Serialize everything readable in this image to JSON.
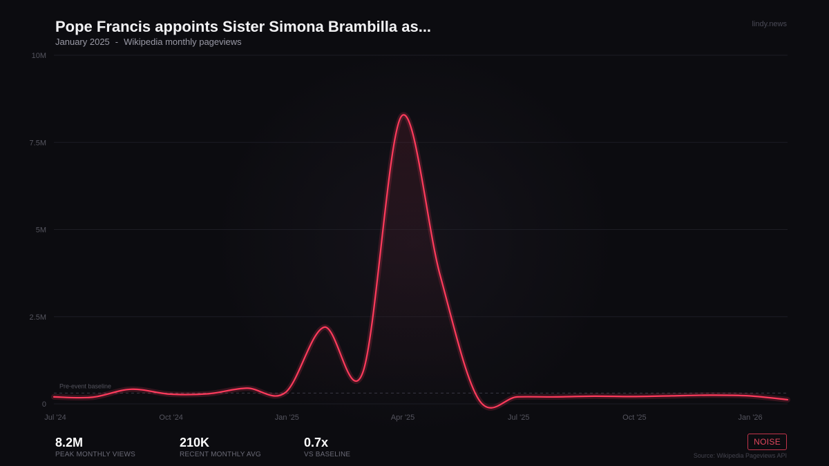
{
  "header": {
    "title": "Pope Francis appoints Sister Simona Brambilla as...",
    "date": "January 2025",
    "separator": "-",
    "metric": "Wikipedia monthly pageviews",
    "brand": "lindy.news"
  },
  "chart_data": {
    "type": "line",
    "ylim": [
      0,
      10000000
    ],
    "y_ticks": [
      0,
      2500000,
      5000000,
      7500000,
      10000000
    ],
    "y_tick_labels": [
      "0",
      "2.5M",
      "5M",
      "7.5M",
      "10M"
    ],
    "x_tick_labels": [
      "Jul '24",
      "Oct '24",
      "Jan '25",
      "Apr '25",
      "Jul '25",
      "Oct '25",
      "Jan '26"
    ],
    "x_tick_positions": [
      0,
      3,
      6,
      9,
      12,
      15,
      18
    ],
    "grid": true,
    "baseline": {
      "label": "Pre-event baseline",
      "value": 310000
    },
    "series": [
      {
        "x": [
          "2024-07",
          "2024-08",
          "2024-09",
          "2024-10",
          "2024-11",
          "2024-12",
          "2025-01",
          "2025-02",
          "2025-03",
          "2025-04",
          "2025-05",
          "2025-06",
          "2025-07",
          "2025-08",
          "2025-09",
          "2025-10",
          "2025-11",
          "2025-12",
          "2026-01",
          "2026-02"
        ],
        "values": [
          200000,
          190000,
          420000,
          280000,
          290000,
          450000,
          330000,
          2200000,
          900000,
          8250000,
          3700000,
          130000,
          200000,
          200000,
          220000,
          210000,
          230000,
          250000,
          230000,
          120000
        ],
        "color": "#ff3b5c"
      }
    ]
  },
  "stats": [
    {
      "value": "8.2M",
      "label": "PEAK MONTHLY VIEWS"
    },
    {
      "value": "210K",
      "label": "RECENT MONTHLY AVG"
    },
    {
      "value": "0.7x",
      "label": "VS BASELINE"
    }
  ],
  "badge": "NOISE",
  "source": "Source: Wikipedia Pageviews API",
  "colors": {
    "accent": "#ff3b5c",
    "badge": "#e0475d",
    "background": "#0c0c10"
  }
}
